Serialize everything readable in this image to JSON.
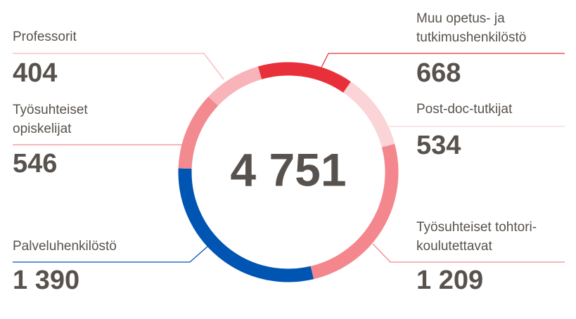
{
  "chart_data": {
    "type": "donut",
    "center_text": "4 751",
    "series": [
      {
        "name": "Muu opetus- ja\ntutkimushenkilöstö",
        "color": "#e8303a",
        "values": [
          668
        ],
        "value_labels": [
          "668"
        ]
      },
      {
        "name": "Post-doc-tutkijat",
        "color": "#fad4d6",
        "values": [
          534
        ],
        "value_labels": [
          "534"
        ]
      },
      {
        "name": "Työsuhteiset tohtori-\nkoulutettavat",
        "color": "#f4878d",
        "values": [
          1209
        ],
        "value_labels": [
          "1 209"
        ]
      },
      {
        "name": "Palveluhenkilöstö",
        "color": "#0055b3",
        "values": [
          1390
        ],
        "value_labels": [
          "1 390"
        ]
      },
      {
        "name": "Työsuhteiset\nopiskelijat",
        "color": "#f28a90",
        "values": [
          546
        ],
        "value_labels": [
          "546"
        ]
      },
      {
        "name": "Professorit",
        "color": "#f8b4b8",
        "values": [
          404
        ],
        "value_labels": [
          "404"
        ]
      }
    ]
  }
}
